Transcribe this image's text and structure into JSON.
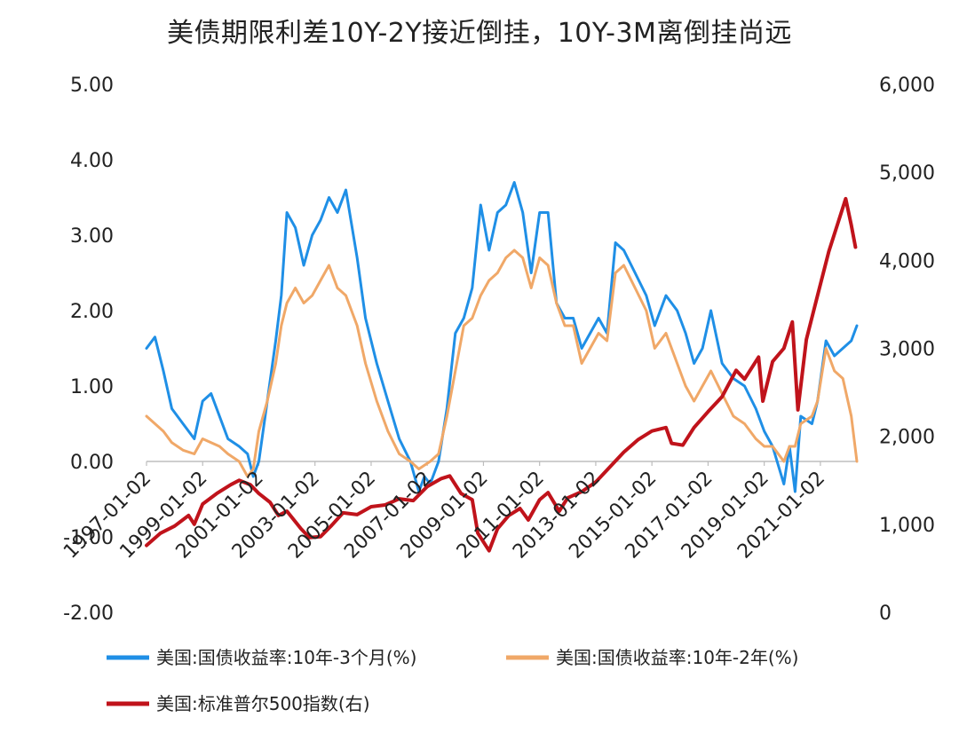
{
  "chart_data": {
    "type": "line",
    "title": "美债期限利差10Y-2Y接近倒挂，10Y-3M离倒挂尚远",
    "x_labels": [
      "1997-01-02",
      "1999-01-02",
      "2001-01-02",
      "2003-01-02",
      "2005-01-02",
      "2007-01-02",
      "2009-01-02",
      "2011-01-02",
      "2013-01-02",
      "2015-01-02",
      "2017-01-02",
      "2019-01-02",
      "2021-01-02"
    ],
    "y_left": {
      "ticks": [
        "5.00",
        "4.00",
        "3.00",
        "2.00",
        "1.00",
        "0.00",
        "-1.00",
        "-2.00"
      ],
      "range": [
        -2,
        5
      ]
    },
    "y_right": {
      "ticks": [
        "6,000",
        "5,000",
        "4,000",
        "3,000",
        "2,000",
        "1,000",
        "0"
      ],
      "range": [
        0,
        6000
      ]
    },
    "grid": false,
    "legend_position": "bottom",
    "series": [
      {
        "name": "美国:国债收益率:10年-3个月(%)",
        "color": "#1f8fe6",
        "axis": "left",
        "points": [
          [
            1997.0,
            1.5
          ],
          [
            1997.3,
            1.65
          ],
          [
            1997.6,
            1.2
          ],
          [
            1997.9,
            0.7
          ],
          [
            1998.3,
            0.5
          ],
          [
            1998.7,
            0.3
          ],
          [
            1999.0,
            0.8
          ],
          [
            1999.3,
            0.9
          ],
          [
            1999.6,
            0.6
          ],
          [
            1999.9,
            0.3
          ],
          [
            2000.3,
            0.2
          ],
          [
            2000.6,
            0.1
          ],
          [
            2000.8,
            -0.2
          ],
          [
            2001.0,
            0.0
          ],
          [
            2001.3,
            0.8
          ],
          [
            2001.6,
            1.6
          ],
          [
            2001.8,
            2.2
          ],
          [
            2002.0,
            3.3
          ],
          [
            2002.3,
            3.1
          ],
          [
            2002.6,
            2.6
          ],
          [
            2002.9,
            3.0
          ],
          [
            2003.2,
            3.2
          ],
          [
            2003.5,
            3.5
          ],
          [
            2003.8,
            3.3
          ],
          [
            2004.1,
            3.6
          ],
          [
            2004.5,
            2.7
          ],
          [
            2004.8,
            1.9
          ],
          [
            2005.2,
            1.3
          ],
          [
            2005.6,
            0.8
          ],
          [
            2006.0,
            0.3
          ],
          [
            2006.4,
            0.0
          ],
          [
            2006.7,
            -0.4
          ],
          [
            2006.9,
            -0.2
          ],
          [
            2007.1,
            -0.3
          ],
          [
            2007.4,
            0.0
          ],
          [
            2007.7,
            0.7
          ],
          [
            2008.0,
            1.7
          ],
          [
            2008.3,
            1.9
          ],
          [
            2008.6,
            2.3
          ],
          [
            2008.9,
            3.4
          ],
          [
            2009.2,
            2.8
          ],
          [
            2009.5,
            3.3
          ],
          [
            2009.8,
            3.4
          ],
          [
            2010.1,
            3.7
          ],
          [
            2010.4,
            3.3
          ],
          [
            2010.7,
            2.5
          ],
          [
            2011.0,
            3.3
          ],
          [
            2011.3,
            3.3
          ],
          [
            2011.6,
            2.1
          ],
          [
            2011.9,
            1.9
          ],
          [
            2012.2,
            1.9
          ],
          [
            2012.5,
            1.5
          ],
          [
            2012.8,
            1.7
          ],
          [
            2013.1,
            1.9
          ],
          [
            2013.4,
            1.7
          ],
          [
            2013.7,
            2.9
          ],
          [
            2014.0,
            2.8
          ],
          [
            2014.4,
            2.5
          ],
          [
            2014.8,
            2.2
          ],
          [
            2015.1,
            1.8
          ],
          [
            2015.5,
            2.2
          ],
          [
            2015.9,
            2.0
          ],
          [
            2016.2,
            1.7
          ],
          [
            2016.5,
            1.3
          ],
          [
            2016.8,
            1.5
          ],
          [
            2017.1,
            2.0
          ],
          [
            2017.5,
            1.3
          ],
          [
            2017.9,
            1.1
          ],
          [
            2018.3,
            1.0
          ],
          [
            2018.7,
            0.7
          ],
          [
            2019.0,
            0.4
          ],
          [
            2019.3,
            0.2
          ],
          [
            2019.7,
            -0.3
          ],
          [
            2019.9,
            0.2
          ],
          [
            2020.1,
            -0.4
          ],
          [
            2020.3,
            0.6
          ],
          [
            2020.7,
            0.5
          ],
          [
            2020.9,
            0.8
          ],
          [
            2021.2,
            1.6
          ],
          [
            2021.5,
            1.4
          ],
          [
            2021.8,
            1.5
          ],
          [
            2022.1,
            1.6
          ],
          [
            2022.3,
            1.8
          ]
        ]
      },
      {
        "name": "美国:国债收益率:10年-2年(%)",
        "color": "#f0a868",
        "axis": "left",
        "points": [
          [
            1997.0,
            0.6
          ],
          [
            1997.3,
            0.5
          ],
          [
            1997.6,
            0.4
          ],
          [
            1997.9,
            0.25
          ],
          [
            1998.3,
            0.15
          ],
          [
            1998.7,
            0.1
          ],
          [
            1999.0,
            0.3
          ],
          [
            1999.3,
            0.25
          ],
          [
            1999.6,
            0.2
          ],
          [
            1999.9,
            0.1
          ],
          [
            2000.3,
            0.0
          ],
          [
            2000.6,
            -0.2
          ],
          [
            2000.8,
            -0.1
          ],
          [
            2001.0,
            0.4
          ],
          [
            2001.3,
            0.8
          ],
          [
            2001.6,
            1.3
          ],
          [
            2001.8,
            1.8
          ],
          [
            2002.0,
            2.1
          ],
          [
            2002.3,
            2.3
          ],
          [
            2002.6,
            2.1
          ],
          [
            2002.9,
            2.2
          ],
          [
            2003.2,
            2.4
          ],
          [
            2003.5,
            2.6
          ],
          [
            2003.8,
            2.3
          ],
          [
            2004.1,
            2.2
          ],
          [
            2004.5,
            1.8
          ],
          [
            2004.8,
            1.3
          ],
          [
            2005.2,
            0.8
          ],
          [
            2005.6,
            0.4
          ],
          [
            2006.0,
            0.1
          ],
          [
            2006.4,
            0.0
          ],
          [
            2006.7,
            -0.1
          ],
          [
            2006.9,
            -0.05
          ],
          [
            2007.1,
            0.0
          ],
          [
            2007.4,
            0.1
          ],
          [
            2007.7,
            0.6
          ],
          [
            2008.0,
            1.2
          ],
          [
            2008.3,
            1.8
          ],
          [
            2008.6,
            1.9
          ],
          [
            2008.9,
            2.2
          ],
          [
            2009.2,
            2.4
          ],
          [
            2009.5,
            2.5
          ],
          [
            2009.8,
            2.7
          ],
          [
            2010.1,
            2.8
          ],
          [
            2010.4,
            2.7
          ],
          [
            2010.7,
            2.3
          ],
          [
            2011.0,
            2.7
          ],
          [
            2011.3,
            2.6
          ],
          [
            2011.6,
            2.1
          ],
          [
            2011.9,
            1.8
          ],
          [
            2012.2,
            1.8
          ],
          [
            2012.5,
            1.3
          ],
          [
            2012.8,
            1.5
          ],
          [
            2013.1,
            1.7
          ],
          [
            2013.4,
            1.6
          ],
          [
            2013.7,
            2.5
          ],
          [
            2014.0,
            2.6
          ],
          [
            2014.4,
            2.3
          ],
          [
            2014.8,
            2.0
          ],
          [
            2015.1,
            1.5
          ],
          [
            2015.5,
            1.7
          ],
          [
            2015.9,
            1.3
          ],
          [
            2016.2,
            1.0
          ],
          [
            2016.5,
            0.8
          ],
          [
            2016.8,
            1.0
          ],
          [
            2017.1,
            1.2
          ],
          [
            2017.5,
            0.9
          ],
          [
            2017.9,
            0.6
          ],
          [
            2018.3,
            0.5
          ],
          [
            2018.7,
            0.3
          ],
          [
            2019.0,
            0.2
          ],
          [
            2019.3,
            0.2
          ],
          [
            2019.7,
            0.0
          ],
          [
            2019.9,
            0.2
          ],
          [
            2020.1,
            0.2
          ],
          [
            2020.3,
            0.5
          ],
          [
            2020.7,
            0.6
          ],
          [
            2020.9,
            0.8
          ],
          [
            2021.2,
            1.5
          ],
          [
            2021.5,
            1.2
          ],
          [
            2021.8,
            1.1
          ],
          [
            2022.1,
            0.6
          ],
          [
            2022.3,
            0.0
          ]
        ]
      },
      {
        "name": "美国:标准普尔500指数(右)",
        "color": "#c0131b",
        "axis": "right",
        "points": [
          [
            1997.0,
            760
          ],
          [
            1997.5,
            900
          ],
          [
            1998.0,
            980
          ],
          [
            1998.5,
            1100
          ],
          [
            1998.7,
            1000
          ],
          [
            1999.0,
            1230
          ],
          [
            1999.5,
            1350
          ],
          [
            2000.0,
            1450
          ],
          [
            2000.3,
            1500
          ],
          [
            2000.7,
            1450
          ],
          [
            2001.0,
            1350
          ],
          [
            2001.4,
            1250
          ],
          [
            2001.7,
            1100
          ],
          [
            2002.0,
            1150
          ],
          [
            2002.5,
            950
          ],
          [
            2002.8,
            850
          ],
          [
            2003.2,
            860
          ],
          [
            2003.6,
            990
          ],
          [
            2004.0,
            1130
          ],
          [
            2004.5,
            1110
          ],
          [
            2005.0,
            1200
          ],
          [
            2005.5,
            1220
          ],
          [
            2006.0,
            1290
          ],
          [
            2006.5,
            1270
          ],
          [
            2007.0,
            1430
          ],
          [
            2007.5,
            1520
          ],
          [
            2007.8,
            1550
          ],
          [
            2008.2,
            1350
          ],
          [
            2008.6,
            1280
          ],
          [
            2008.8,
            900
          ],
          [
            2009.2,
            700
          ],
          [
            2009.5,
            950
          ],
          [
            2009.9,
            1100
          ],
          [
            2010.3,
            1180
          ],
          [
            2010.6,
            1050
          ],
          [
            2011.0,
            1280
          ],
          [
            2011.3,
            1360
          ],
          [
            2011.7,
            1150
          ],
          [
            2012.0,
            1300
          ],
          [
            2012.5,
            1370
          ],
          [
            2013.0,
            1480
          ],
          [
            2013.5,
            1650
          ],
          [
            2014.0,
            1820
          ],
          [
            2014.5,
            1960
          ],
          [
            2015.0,
            2060
          ],
          [
            2015.5,
            2100
          ],
          [
            2015.7,
            1920
          ],
          [
            2016.1,
            1900
          ],
          [
            2016.5,
            2100
          ],
          [
            2017.0,
            2280
          ],
          [
            2017.5,
            2450
          ],
          [
            2018.0,
            2750
          ],
          [
            2018.3,
            2650
          ],
          [
            2018.8,
            2900
          ],
          [
            2018.95,
            2400
          ],
          [
            2019.3,
            2850
          ],
          [
            2019.7,
            3000
          ],
          [
            2020.0,
            3300
          ],
          [
            2020.2,
            2300
          ],
          [
            2020.5,
            3100
          ],
          [
            2020.9,
            3600
          ],
          [
            2021.3,
            4100
          ],
          [
            2021.6,
            4400
          ],
          [
            2021.9,
            4700
          ],
          [
            2022.1,
            4400
          ],
          [
            2022.25,
            4150
          ]
        ]
      }
    ]
  }
}
